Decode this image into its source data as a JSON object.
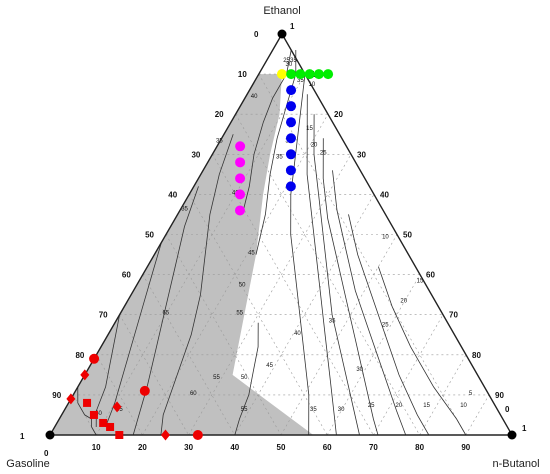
{
  "chart_data": {
    "type": "scatter",
    "subtype": "ternary",
    "vertex_labels": {
      "top": "Ethanol",
      "left": "Gasoline",
      "right": "n-Butanol"
    },
    "vertex_values": {
      "top": "1",
      "left": "1",
      "right": "1"
    },
    "corner_zeros": {
      "top": "0",
      "left": "0",
      "right": "0"
    },
    "ternary_ticks": [
      "10",
      "20",
      "30",
      "40",
      "50",
      "60",
      "70",
      "80",
      "90"
    ],
    "shaded_region_color": "#c0c0c0",
    "points": [
      {
        "color": "#ffff00",
        "marker": "circle",
        "ethanol": 0.9,
        "butanol": 0.05
      },
      {
        "color": "#00ee00",
        "marker": "circle",
        "ethanol": 0.9,
        "butanol": 0.07
      },
      {
        "color": "#00ee00",
        "marker": "circle",
        "ethanol": 0.9,
        "butanol": 0.09
      },
      {
        "color": "#00ee00",
        "marker": "circle",
        "ethanol": 0.9,
        "butanol": 0.11
      },
      {
        "color": "#00ee00",
        "marker": "circle",
        "ethanol": 0.9,
        "butanol": 0.13
      },
      {
        "color": "#00ee00",
        "marker": "circle",
        "ethanol": 0.9,
        "butanol": 0.15
      },
      {
        "color": "#0000ee",
        "marker": "circle",
        "ethanol": 0.86,
        "butanol": 0.09
      },
      {
        "color": "#0000ee",
        "marker": "circle",
        "ethanol": 0.82,
        "butanol": 0.11
      },
      {
        "color": "#0000ee",
        "marker": "circle",
        "ethanol": 0.78,
        "butanol": 0.13
      },
      {
        "color": "#0000ee",
        "marker": "circle",
        "ethanol": 0.74,
        "butanol": 0.15
      },
      {
        "color": "#0000ee",
        "marker": "circle",
        "ethanol": 0.7,
        "butanol": 0.17
      },
      {
        "color": "#0000ee",
        "marker": "circle",
        "ethanol": 0.66,
        "butanol": 0.19
      },
      {
        "color": "#0000ee",
        "marker": "circle",
        "ethanol": 0.62,
        "butanol": 0.21
      },
      {
        "color": "#ff00ff",
        "marker": "circle",
        "ethanol": 0.72,
        "butanol": 0.05
      },
      {
        "color": "#ff00ff",
        "marker": "circle",
        "ethanol": 0.68,
        "butanol": 0.07
      },
      {
        "color": "#ff00ff",
        "marker": "circle",
        "ethanol": 0.64,
        "butanol": 0.09
      },
      {
        "color": "#ff00ff",
        "marker": "circle",
        "ethanol": 0.6,
        "butanol": 0.11
      },
      {
        "color": "#ff00ff",
        "marker": "circle",
        "ethanol": 0.56,
        "butanol": 0.13
      },
      {
        "color": "#ee0000",
        "marker": "circle",
        "ethanol": 0.19,
        "butanol": 0.0
      },
      {
        "color": "#ee0000",
        "marker": "circle",
        "ethanol": 0.11,
        "butanol": 0.15
      },
      {
        "color": "#ee0000",
        "marker": "circle",
        "ethanol": 0.0,
        "butanol": 0.32
      },
      {
        "color": "#ee0000",
        "marker": "diamond",
        "ethanol": 0.15,
        "butanol": 0.0
      },
      {
        "color": "#ee0000",
        "marker": "diamond",
        "ethanol": 0.09,
        "butanol": 0.0
      },
      {
        "color": "#ee0000",
        "marker": "diamond",
        "ethanol": 0.07,
        "butanol": 0.11
      },
      {
        "color": "#ee0000",
        "marker": "diamond",
        "ethanol": 0.0,
        "butanol": 0.25
      },
      {
        "color": "#ee0000",
        "marker": "square",
        "ethanol": 0.08,
        "butanol": 0.04
      },
      {
        "color": "#ee0000",
        "marker": "square",
        "ethanol": 0.05,
        "butanol": 0.07
      },
      {
        "color": "#ee0000",
        "marker": "square",
        "ethanol": 0.03,
        "butanol": 0.1
      },
      {
        "color": "#ee0000",
        "marker": "square",
        "ethanol": 0.02,
        "butanol": 0.12
      },
      {
        "color": "#ee0000",
        "marker": "square",
        "ethanol": 0.0,
        "butanol": 0.15
      }
    ],
    "contour_labels": [
      {
        "text": "25",
        "ethanol": 0.93,
        "butanol": 0.045
      },
      {
        "text": "30",
        "ethanol": 0.92,
        "butanol": 0.055
      },
      {
        "text": "35",
        "ethanol": 0.93,
        "butanol": 0.06
      },
      {
        "text": "35",
        "ethanol": 0.88,
        "butanol": 0.1
      },
      {
        "text": "10",
        "ethanol": 0.87,
        "butanol": 0.13
      },
      {
        "text": "15",
        "ethanol": 0.76,
        "butanol": 0.18
      },
      {
        "text": "20",
        "ethanol": 0.72,
        "butanol": 0.21
      },
      {
        "text": "25",
        "ethanol": 0.7,
        "butanol": 0.24
      },
      {
        "text": "30",
        "ethanol": 0.73,
        "butanol": 0.15
      },
      {
        "text": "35",
        "ethanol": 0.69,
        "butanol": 0.15
      },
      {
        "text": "40",
        "ethanol": 0.84,
        "butanol": 0.02
      },
      {
        "text": "35",
        "ethanol": 0.73,
        "butanol": 0.0
      },
      {
        "text": "35",
        "ethanol": 0.56,
        "butanol": 0.01
      },
      {
        "text": "40",
        "ethanol": 0.6,
        "butanol": 0.1
      },
      {
        "text": "45",
        "ethanol": 0.45,
        "butanol": 0.21
      },
      {
        "text": "50",
        "ethanol": 0.37,
        "butanol": 0.23
      },
      {
        "text": "55",
        "ethanol": 0.3,
        "butanol": 0.26
      },
      {
        "text": "40",
        "ethanol": 0.25,
        "butanol": 0.41
      },
      {
        "text": "35",
        "ethanol": 0.28,
        "butanol": 0.47
      },
      {
        "text": "45",
        "ethanol": 0.17,
        "butanol": 0.39
      },
      {
        "text": "50",
        "ethanol": 0.14,
        "butanol": 0.35
      },
      {
        "text": "55",
        "ethanol": 0.14,
        "butanol": 0.29
      },
      {
        "text": "60",
        "ethanol": 0.1,
        "butanol": 0.26
      },
      {
        "text": "65",
        "ethanol": 0.3,
        "butanol": 0.1
      },
      {
        "text": "60",
        "ethanol": 0.05,
        "butanol": 0.08
      },
      {
        "text": "55",
        "ethanol": 0.06,
        "butanol": 0.12
      },
      {
        "text": "55",
        "ethanol": 0.06,
        "butanol": 0.39
      },
      {
        "text": "35",
        "ethanol": 0.06,
        "butanol": 0.54
      },
      {
        "text": "30",
        "ethanol": 0.06,
        "butanol": 0.6
      },
      {
        "text": "25",
        "ethanol": 0.07,
        "butanol": 0.66
      },
      {
        "text": "20",
        "ethanol": 0.07,
        "butanol": 0.72
      },
      {
        "text": "15",
        "ethanol": 0.07,
        "butanol": 0.78
      },
      {
        "text": "10",
        "ethanol": 0.07,
        "butanol": 0.86
      },
      {
        "text": "5",
        "ethanol": 0.1,
        "butanol": 0.86
      },
      {
        "text": "30",
        "ethanol": 0.16,
        "butanol": 0.59
      },
      {
        "text": "25",
        "ethanol": 0.27,
        "butanol": 0.59
      },
      {
        "text": "20",
        "ethanol": 0.33,
        "butanol": 0.6
      },
      {
        "text": "15",
        "ethanol": 0.38,
        "butanol": 0.61
      },
      {
        "text": "10",
        "ethanol": 0.49,
        "butanol": 0.48
      }
    ]
  }
}
